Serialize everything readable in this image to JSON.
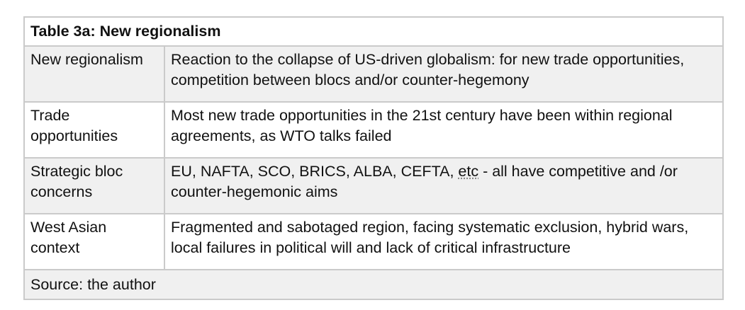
{
  "table": {
    "title": "Table 3a: New regionalism",
    "rows": [
      {
        "label": "New regionalism",
        "text": "Reaction to the collapse of US-driven globalism: for new trade opportunities, competition between blocs and/or counter-hegemony"
      },
      {
        "label": "Trade opportunities",
        "text": "Most new trade opportunities in the 21st century have been within regional agreements, as WTO talks failed"
      },
      {
        "label": "Strategic bloc concerns",
        "text_before": "EU, NAFTA, SCO, BRICS, ALBA, CEFTA, ",
        "text_underlined": "etc",
        "text_after": " - all have competitive and /or counter-hegemonic aims"
      },
      {
        "label": "West Asian context",
        "text": "Fragmented and sabotaged region, facing systematic exclusion, hybrid wars, local failures in political will and lack of critical infrastructure"
      }
    ],
    "source": "Source: the author"
  }
}
